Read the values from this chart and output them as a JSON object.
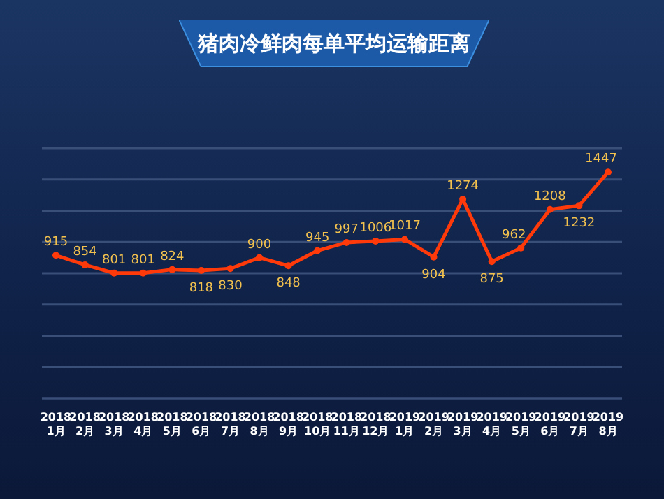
{
  "chart_data": {
    "type": "line",
    "title": "猪肉冷鲜肉每单平均运输距离",
    "categories": [
      "2018\n1月",
      "2018\n2月",
      "2018\n3月",
      "2018\n4月",
      "2018\n5月",
      "2018\n6月",
      "2018\n7月",
      "2018\n8月",
      "2018\n9月",
      "2018\n10月",
      "2018\n11月",
      "2018\n12月",
      "2019\n1月",
      "2019\n2月",
      "2019\n3月",
      "2019\n4月",
      "2019\n5月",
      "2019\n6月",
      "2019\n7月",
      "2019\n8月"
    ],
    "series": [
      {
        "color": "#ff3a0a",
        "values": [
          915,
          854,
          801,
          801,
          824,
          818,
          830,
          900,
          848,
          945,
          997,
          1006,
          1017,
          904,
          1274,
          875,
          962,
          1208,
          1232,
          1447
        ]
      }
    ],
    "ylim": [
      0,
      1600
    ],
    "yticks": [
      {
        "value": 0,
        "label": null
      },
      {
        "value": 200,
        "label": null
      },
      {
        "value": 400,
        "label": null
      },
      {
        "value": 600,
        "label": null
      },
      {
        "value": 800,
        "label": null
      },
      {
        "value": 1000,
        "label": null
      },
      {
        "value": 1200,
        "label": null
      },
      {
        "value": 1400,
        "label": null
      },
      {
        "value": 1600,
        "label": null
      }
    ],
    "tick_labels": "x",
    "grid": "y",
    "legend": false,
    "marker": "circle",
    "line_style": "solid",
    "data_labels": true
  }
}
